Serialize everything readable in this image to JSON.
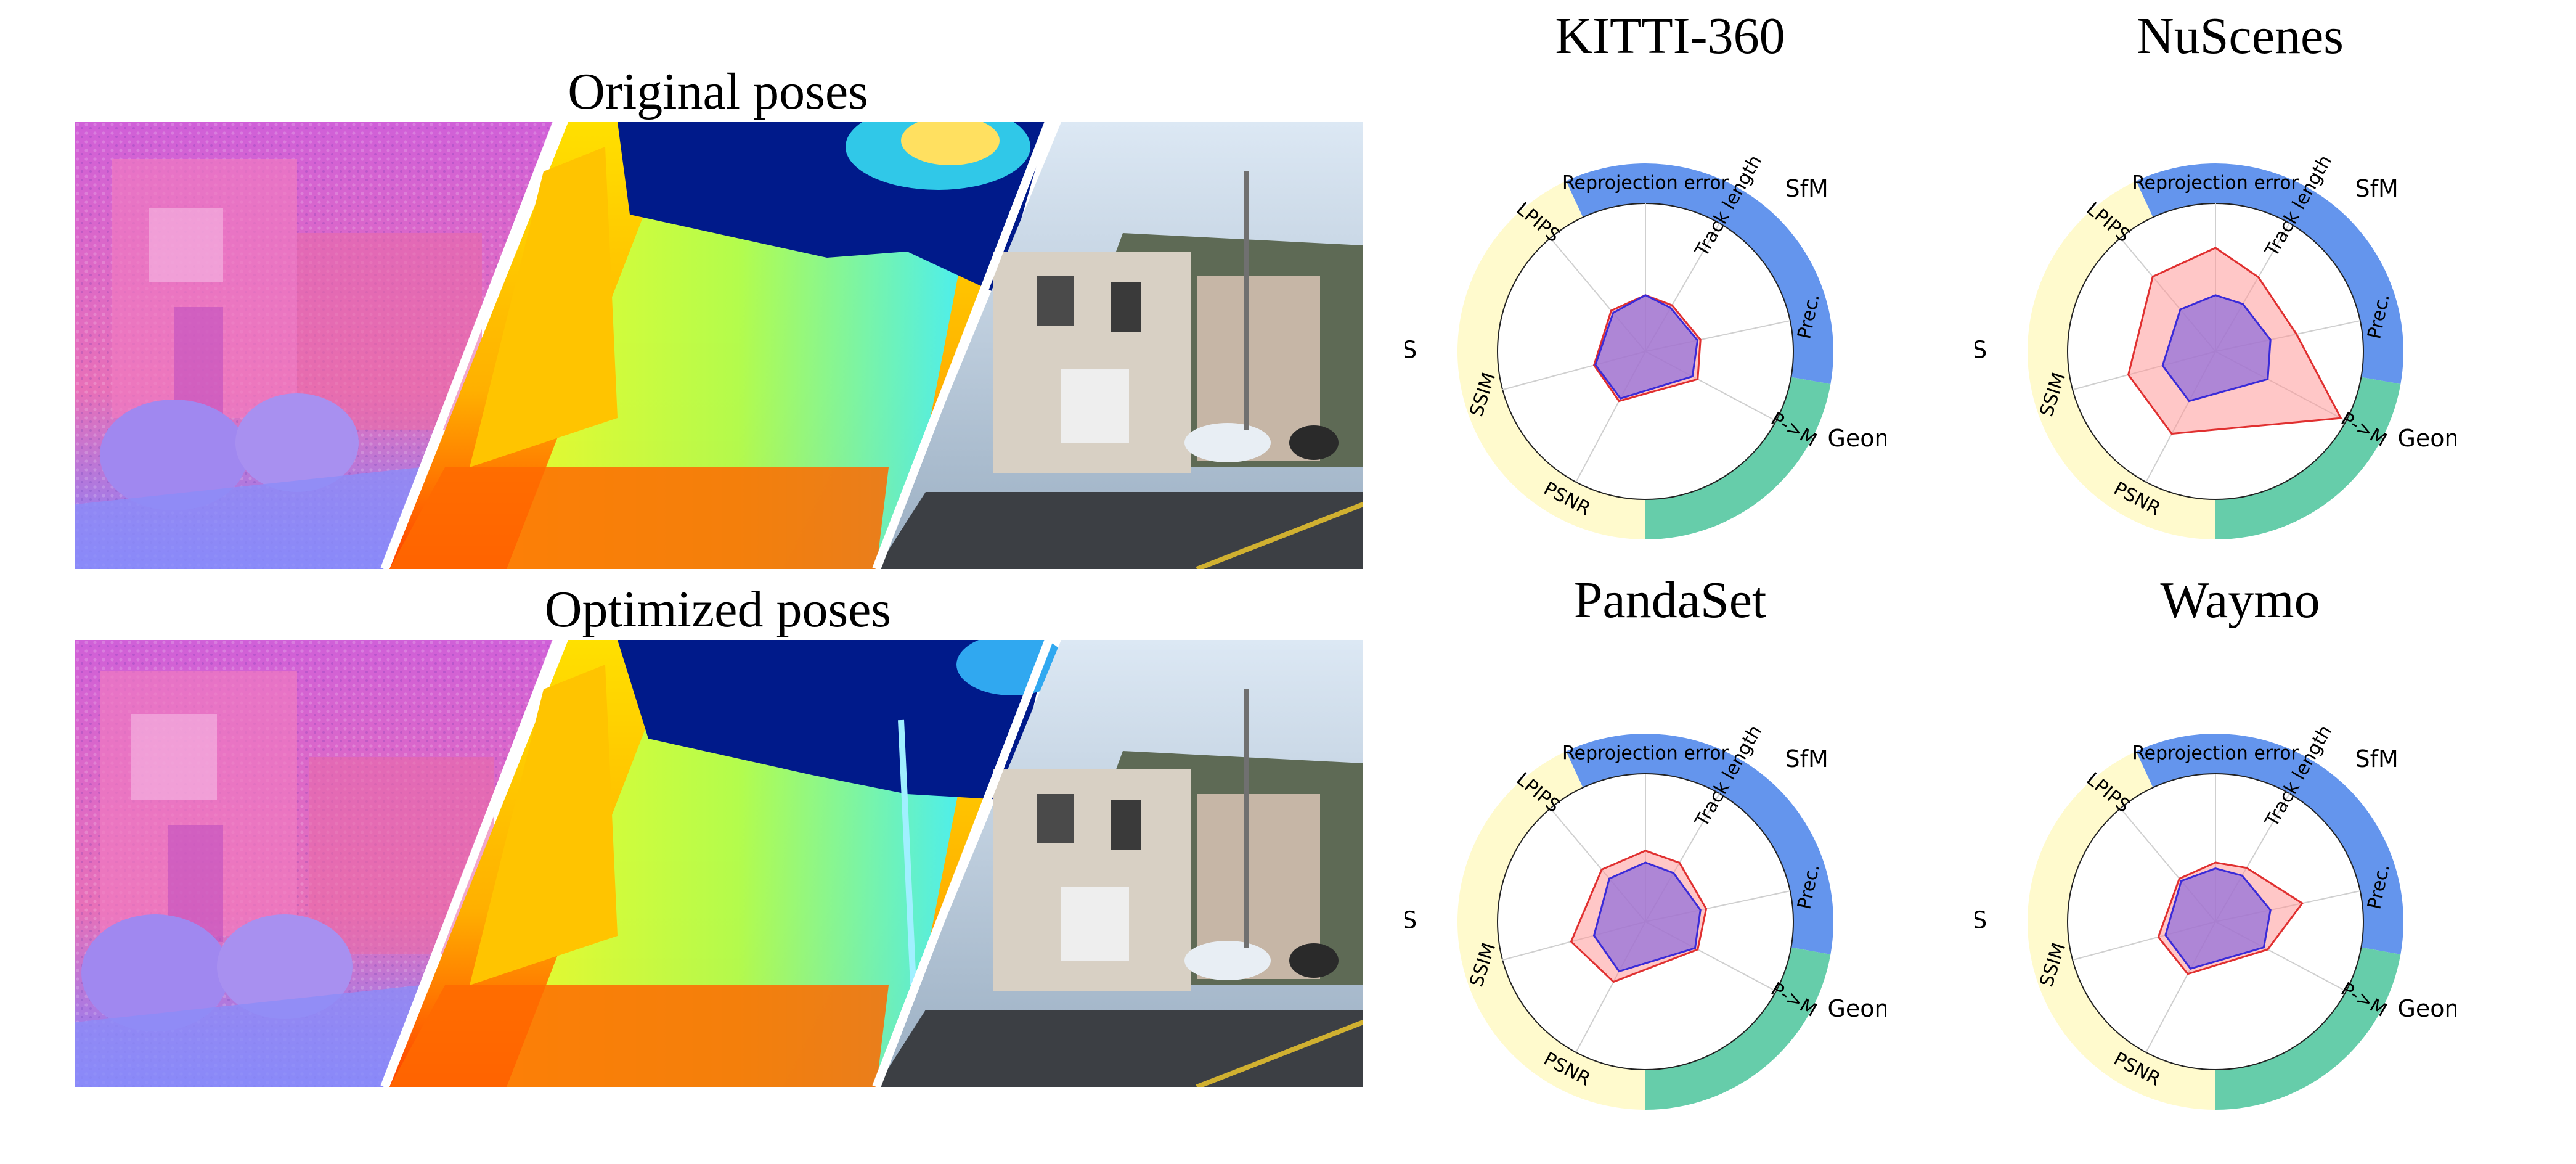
{
  "left_panels": {
    "top_title": "Original poses",
    "bottom_title": "Optimized poses"
  },
  "colors": {
    "sfm": "#6495ed",
    "geometric": "#66cdaa",
    "nvs": "#fffacd",
    "original_fill": "#ff9999",
    "original_line": "#e03030",
    "optimized_fill": "#9370db",
    "optimized_line": "#3a2bd8"
  },
  "chart_data": [
    {
      "type": "radar",
      "title": "KITTI-360",
      "axes": [
        "Reprojection error",
        "Track length",
        "Prec.",
        "P->M",
        "PSNR",
        "SSIM",
        "LPIPS"
      ],
      "groups": [
        {
          "name": "SfM",
          "color": "#6495ed"
        },
        {
          "name": "Geometric",
          "color": "#66cdaa"
        },
        {
          "name": "NVS",
          "color": "#fffacd"
        }
      ],
      "series": [
        {
          "values": [
            0.38,
            0.36,
            0.38,
            0.4,
            0.38,
            0.36,
            0.36
          ]
        },
        {
          "values": [
            0.38,
            0.34,
            0.36,
            0.36,
            0.36,
            0.35,
            0.34
          ]
        }
      ]
    },
    {
      "type": "radar",
      "title": "NuScenes",
      "axes": [
        "Reprojection error",
        "Track length",
        "Prec.",
        "P->M",
        "PSNR",
        "SSIM",
        "LPIPS"
      ],
      "groups": [
        {
          "name": "SfM",
          "color": "#6495ed"
        },
        {
          "name": "Geometric",
          "color": "#66cdaa"
        },
        {
          "name": "NVS",
          "color": "#fffacd"
        }
      ],
      "series": [
        {
          "values": [
            0.7,
            0.58,
            0.56,
            0.96,
            0.63,
            0.61,
            0.66
          ]
        },
        {
          "values": [
            0.38,
            0.37,
            0.38,
            0.4,
            0.38,
            0.37,
            0.37
          ]
        }
      ]
    },
    {
      "type": "radar",
      "title": "PandaSet",
      "axes": [
        "Reprojection error",
        "Track length",
        "Prec.",
        "P->M",
        "PSNR",
        "SSIM",
        "LPIPS"
      ],
      "groups": [
        {
          "name": "SfM",
          "color": "#6495ed"
        },
        {
          "name": "Geometric",
          "color": "#66cdaa"
        },
        {
          "name": "NVS",
          "color": "#fffacd"
        }
      ],
      "series": [
        {
          "values": [
            0.48,
            0.46,
            0.42,
            0.4,
            0.46,
            0.52,
            0.46
          ]
        },
        {
          "values": [
            0.4,
            0.38,
            0.38,
            0.38,
            0.38,
            0.36,
            0.38
          ]
        }
      ]
    },
    {
      "type": "radar",
      "title": "Waymo",
      "axes": [
        "Reprojection error",
        "Track length",
        "Prec.",
        "P->M",
        "PSNR",
        "SSIM",
        "LPIPS"
      ],
      "groups": [
        {
          "name": "SfM",
          "color": "#6495ed"
        },
        {
          "name": "Geometric",
          "color": "#66cdaa"
        },
        {
          "name": "NVS",
          "color": "#fffacd"
        }
      ],
      "series": [
        {
          "values": [
            0.4,
            0.42,
            0.6,
            0.4,
            0.4,
            0.4,
            0.38
          ]
        },
        {
          "values": [
            0.36,
            0.36,
            0.38,
            0.37,
            0.36,
            0.35,
            0.36
          ]
        }
      ]
    }
  ]
}
